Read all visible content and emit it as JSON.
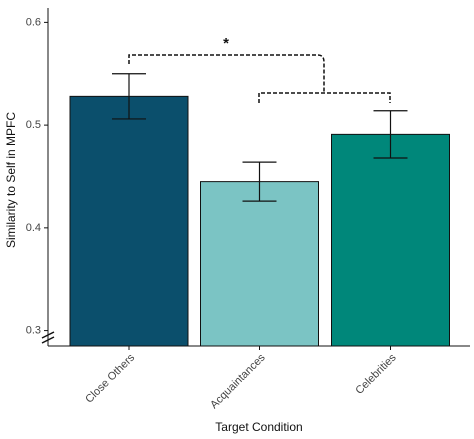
{
  "chart_data": {
    "type": "bar",
    "categories": [
      "Close Others",
      "Acquaintances",
      "Celebrities"
    ],
    "values": [
      0.528,
      0.445,
      0.491
    ],
    "errors": [
      0.022,
      0.019,
      0.023
    ],
    "colors": [
      "#0b4f6c",
      "#7bc4c4",
      "#00877a"
    ],
    "ylim": [
      0.285,
      0.614
    ],
    "yticks": [
      0.3,
      0.4,
      0.5,
      0.6
    ],
    "x_label": "Target Condition",
    "y_label": "Similarity to Self in MPFC",
    "annotation": "*"
  }
}
